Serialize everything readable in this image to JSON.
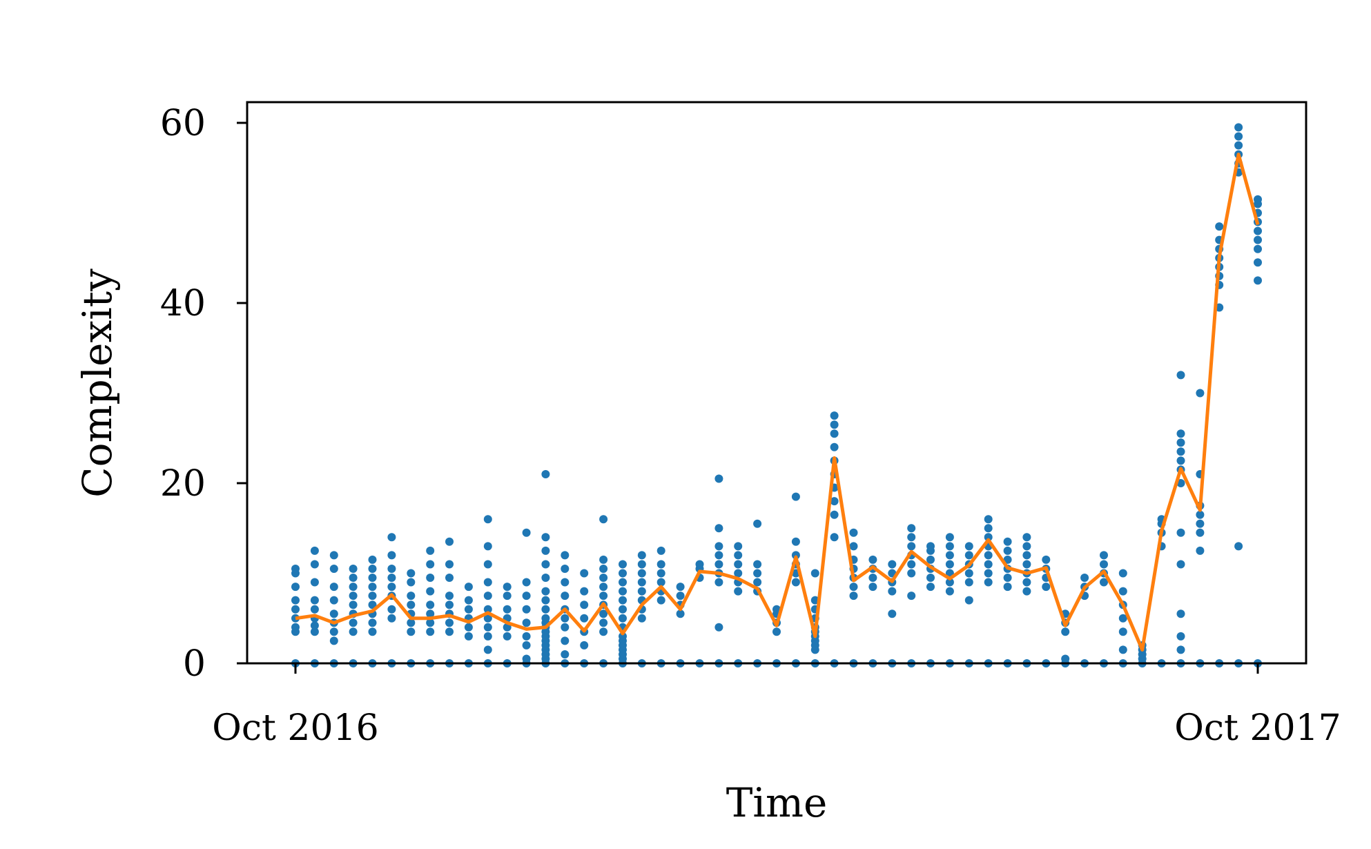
{
  "chart_data": {
    "type": "scatter",
    "title": "",
    "xlabel": "Time",
    "ylabel": "Complexity",
    "x_tick_labels": [
      "Oct 2016",
      "Oct 2017"
    ],
    "y_tick_labels": [
      "0",
      "20",
      "40",
      "60"
    ],
    "y_ticks": [
      0,
      20,
      40,
      60
    ],
    "ylim": [
      0,
      62.3
    ],
    "grid": false,
    "legend": "none",
    "colors": {
      "scatter": "#1f77b4",
      "line": "#ff7f0e",
      "axes": "#000000"
    },
    "x": [
      0,
      2,
      4,
      6,
      8,
      10,
      12,
      14,
      16,
      18,
      20,
      22,
      24,
      26,
      28,
      30,
      32,
      34,
      36,
      38,
      40,
      42,
      44,
      46,
      48,
      50,
      52,
      54,
      56,
      58,
      60,
      62,
      64,
      66,
      68,
      70,
      72,
      74,
      76,
      78,
      80,
      82,
      84,
      86,
      88,
      90,
      92,
      94,
      96,
      98,
      100
    ],
    "series": [
      {
        "type": "scatter",
        "point_groups": [
          [
            0,
            3.5,
            4,
            5,
            6,
            7,
            8.5,
            10,
            10.5
          ],
          [
            0,
            3.5,
            4.2,
            5,
            6,
            7,
            9,
            11,
            12.5
          ],
          [
            0,
            2.5,
            3.5,
            4.5,
            5.5,
            7,
            8.5,
            10.5,
            12
          ],
          [
            0,
            3.5,
            4.5,
            5.5,
            6.5,
            7.5,
            8.5,
            9.5,
            10.5
          ],
          [
            0,
            3.5,
            4.5,
            5.5,
            6.5,
            7.5,
            8.5,
            9.5,
            10.5,
            11.5
          ],
          [
            0,
            5,
            6,
            7.5,
            8.5,
            9.5,
            10.5,
            12,
            14
          ],
          [
            0,
            3.5,
            4.5,
            5.5,
            6.5,
            7.5,
            9,
            10
          ],
          [
            0,
            3.5,
            4.5,
            5.5,
            6.5,
            8,
            9.5,
            11,
            12.5
          ],
          [
            0,
            3.5,
            4.5,
            5.5,
            6.5,
            7.5,
            9.5,
            11,
            13.5
          ],
          [
            0,
            3,
            4,
            5,
            6,
            7,
            8.5
          ],
          [
            0,
            1.5,
            3,
            4,
            5,
            6,
            7.5,
            9,
            11,
            13,
            16
          ],
          [
            0,
            3,
            4,
            5,
            6,
            7.5,
            8.5
          ],
          [
            0,
            0.5,
            2,
            3,
            4.5,
            6,
            7.5,
            9,
            14.5
          ],
          [
            0,
            0.5,
            1,
            1.5,
            2,
            2.5,
            3,
            3.5,
            4,
            4.5,
            5,
            6,
            7,
            8,
            9.5,
            11,
            12.5,
            14,
            21
          ],
          [
            0,
            1,
            2.5,
            4,
            5,
            6,
            7.5,
            9,
            10.5,
            12
          ],
          [
            0,
            2,
            3.5,
            5,
            6.5,
            8,
            10
          ],
          [
            0,
            3.5,
            4.5,
            5.5,
            6.5,
            7.5,
            8.5,
            9.5,
            10.5,
            11.5,
            16
          ],
          [
            0,
            0.5,
            1,
            1.5,
            2,
            2.5,
            3,
            4,
            5,
            6,
            7,
            8,
            9,
            10,
            11
          ],
          [
            0,
            5,
            6,
            7,
            8,
            9,
            10,
            11,
            12
          ],
          [
            0,
            7,
            8,
            9,
            10,
            11,
            12.5
          ],
          [
            0,
            5.5,
            6.5,
            7.5,
            8.5
          ],
          [
            0,
            9.5,
            10.5,
            11
          ],
          [
            0,
            4,
            9,
            10,
            11,
            12,
            13,
            15,
            20.5
          ],
          [
            0,
            8,
            9,
            10,
            11,
            12,
            13
          ],
          [
            0,
            8,
            9,
            10,
            11,
            15.5
          ],
          [
            0,
            3.5,
            4.5,
            5.5,
            6
          ],
          [
            0,
            9,
            10,
            11,
            12,
            13.5,
            18.5
          ],
          [
            0,
            1.5,
            2,
            2.5,
            3,
            3.5,
            4,
            5,
            6,
            7,
            10
          ],
          [
            0,
            14,
            16.5,
            18,
            19.5,
            21,
            22.5,
            24,
            25.5,
            26.5,
            27.5
          ],
          [
            0,
            7.5,
            8.5,
            9.5,
            10.5,
            11.5,
            13,
            14.5
          ],
          [
            0,
            8.5,
            9.5,
            10.5,
            11.5
          ],
          [
            0,
            5.5,
            8,
            9,
            10,
            11
          ],
          [
            0,
            7.5,
            10,
            11,
            12,
            13,
            14,
            15
          ],
          [
            0,
            8.5,
            9.5,
            10.5,
            11.5,
            12.5,
            13
          ],
          [
            0,
            8,
            9,
            10,
            11,
            12,
            13,
            14
          ],
          [
            0,
            7,
            9,
            10,
            11,
            12,
            13
          ],
          [
            0,
            9,
            10,
            11,
            12,
            13,
            14,
            15,
            16
          ],
          [
            0,
            8.5,
            9.5,
            10.5,
            11.5,
            12.5,
            13.5
          ],
          [
            0,
            8,
            9,
            10,
            11,
            12,
            13,
            14
          ],
          [
            0,
            8.5,
            9.5,
            10.5,
            11.5
          ],
          [
            0,
            0.5,
            3.5,
            4.5,
            5.5
          ],
          [
            0,
            7.5,
            8.5,
            9.5
          ],
          [
            0,
            9,
            10,
            11,
            12
          ],
          [
            0,
            1.5,
            3.5,
            5,
            6.5,
            8,
            10
          ],
          [
            0,
            0.5,
            1,
            1.5,
            2
          ],
          [
            0,
            13,
            14.5,
            15.5,
            16
          ],
          [
            0,
            1.5,
            3,
            5.5,
            11,
            14.5,
            20,
            21.5,
            22.5,
            23.5,
            24.5,
            25.5,
            32
          ],
          [
            0,
            12.5,
            14.5,
            15.5,
            16.5,
            17.5,
            21,
            30
          ],
          [
            0,
            39.5,
            42,
            43,
            44,
            45,
            46,
            47,
            48.5
          ],
          [
            0,
            13,
            54.5,
            55.5,
            56.5,
            57.5,
            58.5,
            59.5
          ],
          [
            0,
            42.5,
            44.5,
            46,
            47,
            48,
            49,
            50,
            51,
            51.5
          ]
        ]
      },
      {
        "type": "line",
        "values": [
          5,
          5.3,
          4.5,
          5.3,
          5.8,
          7.6,
          5,
          5,
          5.3,
          4.6,
          5.6,
          4.5,
          3.8,
          4,
          6,
          3.6,
          6.6,
          3.3,
          6.5,
          8.5,
          6,
          10.2,
          10,
          9.4,
          8.3,
          4.2,
          11.8,
          3,
          22.8,
          9.2,
          10.7,
          9.1,
          12.4,
          10.7,
          9.4,
          10.9,
          13.7,
          10.6,
          10,
          10.6,
          4.2,
          8.4,
          10.2,
          6.5,
          1.5,
          14.7,
          21.6,
          17,
          45.1,
          56.5,
          48.7
        ]
      }
    ]
  }
}
